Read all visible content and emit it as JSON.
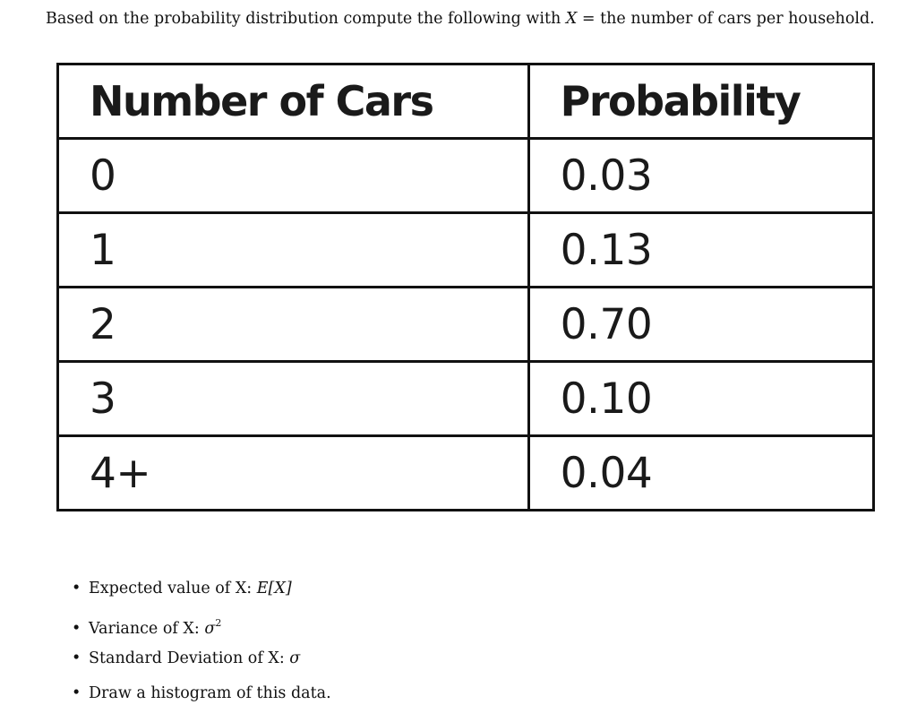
{
  "intro": {
    "before": "Based on the probability distribution compute the following with ",
    "variable": "X",
    "equals": " = ",
    "after": "the number of cars per household."
  },
  "table": {
    "headers": [
      "Number of Cars",
      "Probability"
    ],
    "rows": [
      [
        "0",
        "0.03"
      ],
      [
        "1",
        "0.13"
      ],
      [
        "2",
        "0.70"
      ],
      [
        "3",
        "0.10"
      ],
      [
        "4+",
        "0.04"
      ]
    ]
  },
  "tasks": [
    {
      "text": "Expected value of X: ",
      "math": "E[X]",
      "sup": ""
    },
    {
      "text": "Variance of X: ",
      "math": "σ",
      "sup": "2"
    },
    {
      "text": "Standard Deviation of X: ",
      "math": "σ",
      "sup": ""
    },
    {
      "text": "Draw a histogram of this data.",
      "math": "",
      "sup": ""
    }
  ],
  "bullet_glyph": "•"
}
